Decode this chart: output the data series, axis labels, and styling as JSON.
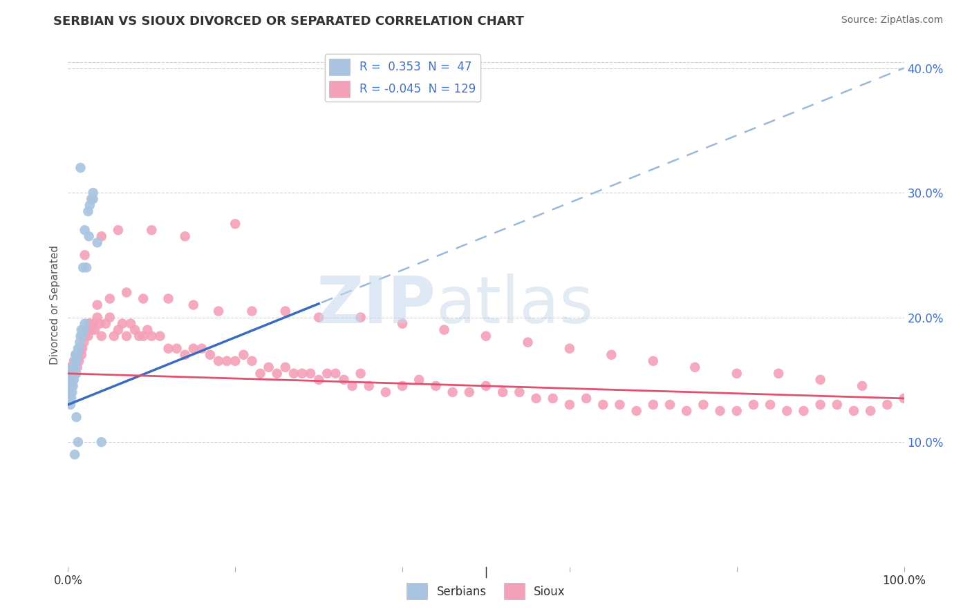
{
  "title": "SERBIAN VS SIOUX DIVORCED OR SEPARATED CORRELATION CHART",
  "source": "Source: ZipAtlas.com",
  "ylabel": "Divorced or Separated",
  "watermark_zip": "ZIP",
  "watermark_atlas": "atlas",
  "legend_r1": "R =  0.353  N =  47",
  "legend_r2": "R = -0.045  N = 129",
  "serbian_color": "#a8c4e0",
  "sioux_color": "#f4a0b8",
  "serbian_line_color": "#3a6bbf",
  "sioux_line_color": "#e05070",
  "dashed_line_color": "#9ab8d8",
  "xlim": [
    0.0,
    1.0
  ],
  "ylim": [
    0.0,
    0.42
  ],
  "title_color": "#333333",
  "tick_color": "#4472c4",
  "source_color": "#666666",
  "serbian_x": [
    0.001,
    0.002,
    0.002,
    0.003,
    0.003,
    0.003,
    0.004,
    0.004,
    0.004,
    0.005,
    0.005,
    0.005,
    0.006,
    0.006,
    0.007,
    0.007,
    0.008,
    0.008,
    0.009,
    0.009,
    0.01,
    0.01,
    0.011,
    0.012,
    0.013,
    0.014,
    0.015,
    0.016,
    0.017,
    0.018,
    0.019,
    0.02,
    0.022,
    0.024,
    0.026,
    0.028,
    0.03,
    0.015,
    0.02,
    0.018,
    0.025,
    0.03,
    0.035,
    0.04,
    0.01,
    0.008,
    0.012
  ],
  "serbian_y": [
    0.14,
    0.135,
    0.145,
    0.14,
    0.15,
    0.13,
    0.145,
    0.15,
    0.135,
    0.155,
    0.14,
    0.16,
    0.155,
    0.145,
    0.16,
    0.15,
    0.165,
    0.155,
    0.16,
    0.17,
    0.165,
    0.155,
    0.17,
    0.175,
    0.175,
    0.18,
    0.185,
    0.19,
    0.185,
    0.19,
    0.19,
    0.195,
    0.24,
    0.285,
    0.29,
    0.295,
    0.3,
    0.32,
    0.27,
    0.24,
    0.265,
    0.295,
    0.26,
    0.1,
    0.12,
    0.09,
    0.1
  ],
  "sioux_x": [
    0.001,
    0.002,
    0.003,
    0.004,
    0.005,
    0.006,
    0.007,
    0.008,
    0.009,
    0.01,
    0.011,
    0.012,
    0.013,
    0.014,
    0.015,
    0.016,
    0.017,
    0.018,
    0.019,
    0.02,
    0.022,
    0.024,
    0.026,
    0.028,
    0.03,
    0.032,
    0.035,
    0.038,
    0.04,
    0.045,
    0.05,
    0.055,
    0.06,
    0.065,
    0.07,
    0.075,
    0.08,
    0.085,
    0.09,
    0.095,
    0.1,
    0.11,
    0.12,
    0.13,
    0.14,
    0.15,
    0.16,
    0.17,
    0.18,
    0.19,
    0.2,
    0.21,
    0.22,
    0.23,
    0.24,
    0.25,
    0.26,
    0.27,
    0.28,
    0.29,
    0.3,
    0.31,
    0.32,
    0.33,
    0.34,
    0.35,
    0.36,
    0.38,
    0.4,
    0.42,
    0.44,
    0.46,
    0.48,
    0.5,
    0.52,
    0.54,
    0.56,
    0.58,
    0.6,
    0.62,
    0.64,
    0.66,
    0.68,
    0.7,
    0.72,
    0.74,
    0.76,
    0.78,
    0.8,
    0.82,
    0.84,
    0.86,
    0.88,
    0.9,
    0.92,
    0.94,
    0.96,
    0.98,
    1.0,
    0.015,
    0.025,
    0.035,
    0.05,
    0.07,
    0.09,
    0.12,
    0.15,
    0.18,
    0.22,
    0.26,
    0.3,
    0.35,
    0.4,
    0.45,
    0.5,
    0.55,
    0.6,
    0.65,
    0.7,
    0.75,
    0.8,
    0.85,
    0.9,
    0.95,
    0.02,
    0.04,
    0.06,
    0.1,
    0.14,
    0.2
  ],
  "sioux_y": [
    0.155,
    0.15,
    0.16,
    0.155,
    0.16,
    0.155,
    0.165,
    0.16,
    0.17,
    0.165,
    0.16,
    0.17,
    0.165,
    0.175,
    0.175,
    0.17,
    0.175,
    0.185,
    0.18,
    0.185,
    0.19,
    0.185,
    0.195,
    0.19,
    0.195,
    0.19,
    0.2,
    0.195,
    0.185,
    0.195,
    0.2,
    0.185,
    0.19,
    0.195,
    0.185,
    0.195,
    0.19,
    0.185,
    0.185,
    0.19,
    0.185,
    0.185,
    0.175,
    0.175,
    0.17,
    0.175,
    0.175,
    0.17,
    0.165,
    0.165,
    0.165,
    0.17,
    0.165,
    0.155,
    0.16,
    0.155,
    0.16,
    0.155,
    0.155,
    0.155,
    0.15,
    0.155,
    0.155,
    0.15,
    0.145,
    0.155,
    0.145,
    0.14,
    0.145,
    0.15,
    0.145,
    0.14,
    0.14,
    0.145,
    0.14,
    0.14,
    0.135,
    0.135,
    0.13,
    0.135,
    0.13,
    0.13,
    0.125,
    0.13,
    0.13,
    0.125,
    0.13,
    0.125,
    0.125,
    0.13,
    0.13,
    0.125,
    0.125,
    0.13,
    0.13,
    0.125,
    0.125,
    0.13,
    0.135,
    0.175,
    0.195,
    0.21,
    0.215,
    0.22,
    0.215,
    0.215,
    0.21,
    0.205,
    0.205,
    0.205,
    0.2,
    0.2,
    0.195,
    0.19,
    0.185,
    0.18,
    0.175,
    0.17,
    0.165,
    0.16,
    0.155,
    0.155,
    0.15,
    0.145,
    0.25,
    0.265,
    0.27,
    0.27,
    0.265,
    0.275
  ]
}
